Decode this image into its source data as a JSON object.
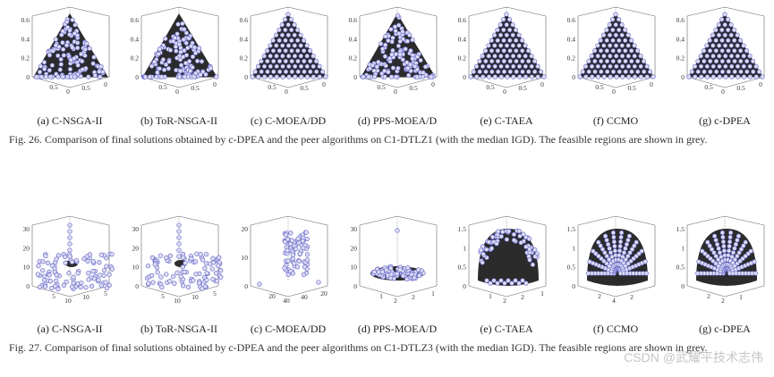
{
  "chart_data": [
    {
      "type": "scatter",
      "figure": "Fig. 26",
      "panels": [
        {
          "caption": "(a) C-NSGA-II",
          "z_ticks": [
            "0.6",
            "0.4",
            "0.2",
            "0"
          ],
          "x_ticks": [
            "0.5",
            "0"
          ],
          "y_ticks": [
            "0.5",
            "0"
          ],
          "distribution": "clustered",
          "front": "triangle",
          "fill": "grey"
        },
        {
          "caption": "(b) ToR-NSGA-II",
          "z_ticks": [
            "0.6",
            "0.4",
            "0.2",
            "0"
          ],
          "x_ticks": [
            "0.5",
            "0"
          ],
          "y_ticks": [
            "0.5",
            "0"
          ],
          "distribution": "clustered",
          "front": "triangle",
          "fill": "grey"
        },
        {
          "caption": "(c) C-MOEA/DD",
          "z_ticks": [
            "0.6",
            "0.4",
            "0.2",
            "0"
          ],
          "x_ticks": [
            "0.5",
            "0"
          ],
          "y_ticks": [
            "0.5",
            "0"
          ],
          "distribution": "uniform",
          "front": "triangle",
          "fill": "grey"
        },
        {
          "caption": "(d) PPS-MOEA/D",
          "z_ticks": [
            "0.6",
            "0.4",
            "0.2",
            "0"
          ],
          "x_ticks": [
            "0.5",
            "0"
          ],
          "y_ticks": [
            "0.5",
            "0"
          ],
          "distribution": "clustered",
          "front": "triangle",
          "fill": "grey"
        },
        {
          "caption": "(e) C-TAEA",
          "z_ticks": [
            "0.6",
            "0.4",
            "0.2",
            "0"
          ],
          "x_ticks": [
            "0.5",
            "0"
          ],
          "y_ticks": [
            "0.5",
            "0"
          ],
          "distribution": "uniform",
          "front": "triangle",
          "fill": "grey"
        },
        {
          "caption": "(f) CCMO",
          "z_ticks": [
            "0.6",
            "0.4",
            "0.2",
            "0"
          ],
          "x_ticks": [
            "0.5",
            "0"
          ],
          "y_ticks": [
            "0.5",
            "0"
          ],
          "distribution": "uniform",
          "front": "triangle",
          "fill": "grey"
        },
        {
          "caption": "(g) c-DPEA",
          "z_ticks": [
            "0.6",
            "0.4",
            "0.2",
            "0"
          ],
          "x_ticks": [
            "0.5",
            "0"
          ],
          "y_ticks": [
            "0.5",
            "0"
          ],
          "distribution": "uniform",
          "front": "triangle",
          "fill": "grey"
        }
      ]
    },
    {
      "type": "scatter",
      "figure": "Fig. 27",
      "panels": [
        {
          "caption": "(a) C-NSGA-II",
          "z_ticks": [
            "30",
            "20",
            "10",
            "0"
          ],
          "x_ticks": [
            "5",
            "10"
          ],
          "y_ticks": [
            "10",
            "5"
          ],
          "distribution": "scattered",
          "front": "small-cap"
        },
        {
          "caption": "(b) ToR-NSGA-II",
          "z_ticks": [
            "30",
            "20",
            "10",
            "0"
          ],
          "x_ticks": [
            "5",
            "10"
          ],
          "y_ticks": [
            "10",
            "5"
          ],
          "distribution": "scattered",
          "front": "small-cap"
        },
        {
          "caption": "(c) C-MOEA/DD",
          "z_ticks": [
            "20",
            "10",
            "0"
          ],
          "x_ticks": [
            "20",
            "40"
          ],
          "y_ticks": [
            "40",
            "20"
          ],
          "distribution": "column",
          "front": "none"
        },
        {
          "caption": "(d) PPS-MOEA/D",
          "z_ticks": [
            "30",
            "20",
            "10",
            "0"
          ],
          "x_ticks": [
            "1",
            "2"
          ],
          "y_ticks": [
            "2",
            "1"
          ],
          "distribution": "flat",
          "front": "flat-cap"
        },
        {
          "caption": "(e) C-TAEA",
          "z_ticks": [
            "1.5",
            "1",
            "0.5",
            "0"
          ],
          "x_ticks": [
            "1",
            "2"
          ],
          "y_ticks": [
            "2",
            "1"
          ],
          "distribution": "dome-edge",
          "front": "dome"
        },
        {
          "caption": "(f) CCMO",
          "z_ticks": [
            "1.5",
            "1",
            "0.5",
            "0"
          ],
          "x_ticks": [
            "2",
            "4"
          ],
          "y_ticks": [
            "2"
          ],
          "distribution": "dome",
          "front": "dome"
        },
        {
          "caption": "(g) c-DPEA",
          "z_ticks": [
            "1.5",
            "1",
            "0.5",
            "0"
          ],
          "x_ticks": [
            "2",
            "2"
          ],
          "y_ticks": [
            "1"
          ],
          "distribution": "dome",
          "front": "dome"
        }
      ]
    }
  ],
  "captions": {
    "fig26": "Fig. 26.  Comparison of final solutions obtained by c-DPEA and the peer algorithms on C1-DTLZ1 (with the median IGD). The feasible regions are shown in grey.",
    "fig27": "Fig. 27.  Comparison of final solutions obtained by c-DPEA and the peer algorithms on C1-DTLZ3 (with the median IGD). The feasible regions are shown in grey."
  },
  "watermark": "CSDN @武耀平技术志伟",
  "colors": {
    "marker": "#6a6acb",
    "marker_fill": "#dcdcf2",
    "region": "#2b2b2b",
    "axis": "#666666"
  }
}
